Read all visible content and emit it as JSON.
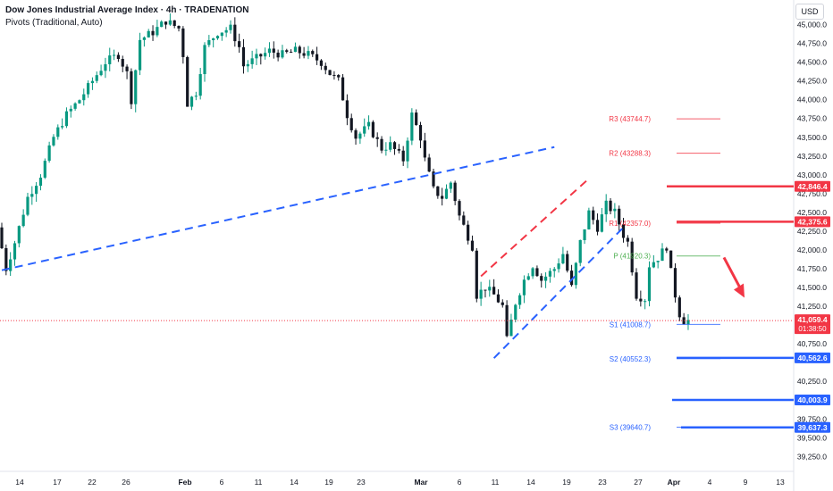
{
  "header": {
    "title": "Dow Jones Industrial Average Index · 4h · TRADENATION",
    "indicator": "Pivots (Traditional, Auto)",
    "currency": "USD"
  },
  "chart_data": {
    "type": "candlestick",
    "y_ticks": [
      45000,
      44750,
      44500,
      44250,
      44000,
      43750,
      43500,
      43250,
      43000,
      42750,
      42500,
      42250,
      42000,
      41750,
      41500,
      41250,
      40750,
      40250,
      39750,
      39500,
      39250
    ],
    "ylim": [
      39100,
      45280
    ],
    "x_ticks": [
      "14",
      "17",
      "22",
      "26",
      "Feb",
      "6",
      "11",
      "14",
      "19",
      "23",
      "Mar",
      "6",
      "11",
      "14",
      "19",
      "23",
      "27",
      "Apr",
      "4",
      "9",
      "13"
    ],
    "x_tick_bold": [
      "Feb",
      "Mar",
      "Apr"
    ],
    "candle_count": 165,
    "last_price": {
      "value": "41,059.4",
      "countdown": "01:38:50",
      "color": "#f23645"
    },
    "price_labels": [
      {
        "value": 42846.4,
        "label": "42,846.4",
        "color": "#f23645"
      },
      {
        "value": 42375.6,
        "label": "42,375.6",
        "color": "#f23645"
      },
      {
        "value": 40562.6,
        "label": "40,562.6",
        "color": "#2962ff"
      },
      {
        "value": 40003.9,
        "label": "40,003.9",
        "color": "#2962ff"
      },
      {
        "value": 39637.3,
        "label": "39,637.3",
        "color": "#2962ff"
      }
    ],
    "pivots": [
      {
        "name": "R3",
        "value": 43744.7,
        "label": "R3 (43744.7)",
        "color": "#f23645"
      },
      {
        "name": "R2",
        "value": 43288.3,
        "label": "R2 (43288.3)",
        "color": "#f23645"
      },
      {
        "name": "R1",
        "value": 42357.0,
        "label": "R1 (42357.0)",
        "color": "#f23645"
      },
      {
        "name": "P",
        "value": 41920.3,
        "label": "P (41920.3)",
        "color": "#4caf50"
      },
      {
        "name": "S1",
        "value": 41008.7,
        "label": "S1 (41008.7)",
        "color": "#2962ff"
      },
      {
        "name": "S2",
        "value": 40552.3,
        "label": "S2 (40552.3)",
        "color": "#2962ff"
      },
      {
        "name": "S3",
        "value": 39640.7,
        "label": "S3 (39640.7)",
        "color": "#2962ff"
      }
    ],
    "trendlines": [
      {
        "name": "long-uptrend",
        "color": "#2962ff",
        "dash": true,
        "from": [
          0,
          41730
        ],
        "to": [
          128,
          43370
        ]
      },
      {
        "name": "channel-upper",
        "color": "#f23645",
        "dash": true,
        "from": [
          111,
          41650
        ],
        "to": [
          136,
          42950
        ]
      },
      {
        "name": "channel-lower",
        "color": "#2962ff",
        "dash": true,
        "from": [
          114,
          40560
        ],
        "to": [
          144,
          42300
        ]
      }
    ],
    "arrow": {
      "color": "#f23645",
      "from": [
        159,
        41900
      ],
      "to": [
        162,
        41400
      ]
    },
    "colors": {
      "up": "#089981",
      "down": "#f23645",
      "candle_body_up": "#089981",
      "candle_body_down": "#131722"
    }
  }
}
